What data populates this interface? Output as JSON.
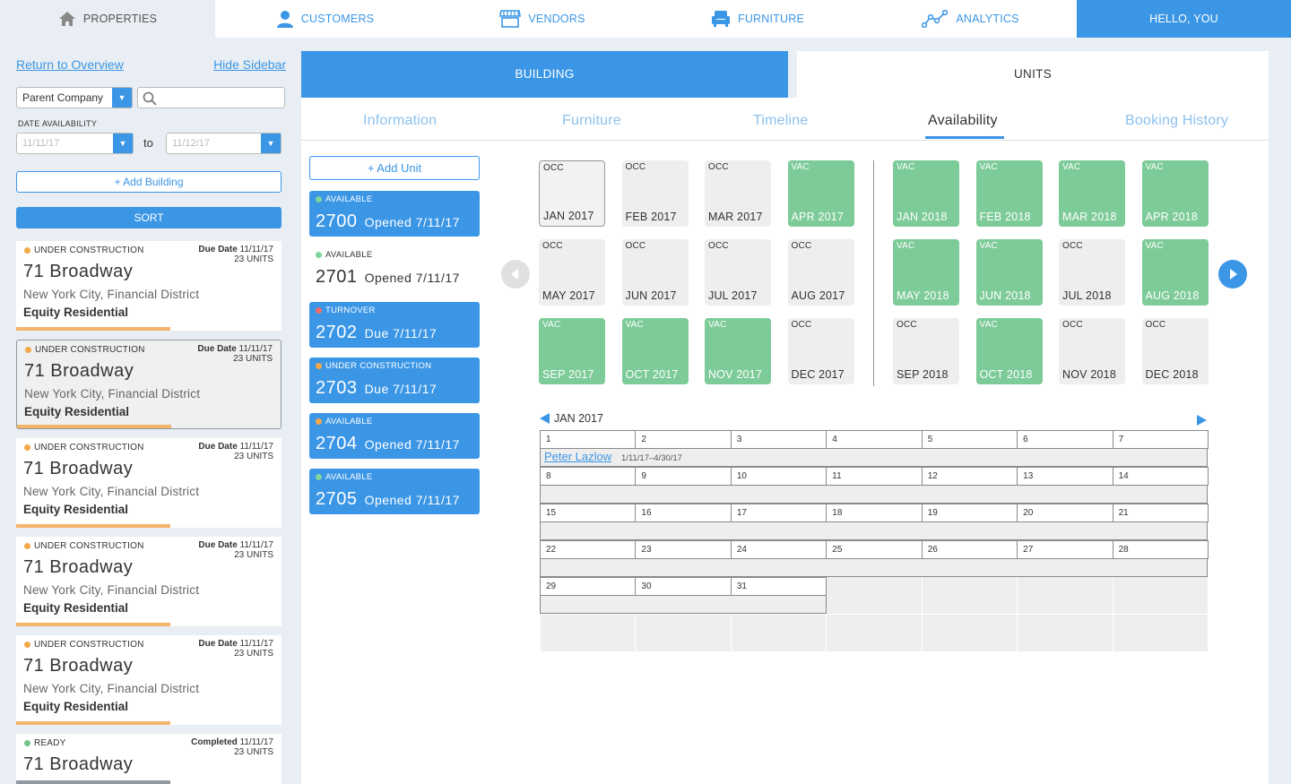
{
  "nav": {
    "properties": "PROPERTIES",
    "customers": "CUSTOMERS",
    "vendors": "VENDORS",
    "furniture": "FURNITURE",
    "analytics": "ANALYTICS",
    "greeting": "HELLO, YOU"
  },
  "sidebar": {
    "return_link": "Return to Overview",
    "hide_link": "Hide Sidebar",
    "company_select": "Parent Company",
    "search_placeholder": "",
    "date_label": "DATE AVAILABILITY",
    "date_from": "11/11/17",
    "date_to": "11/12/17",
    "to_label": "to",
    "add_building": "+ Add Building",
    "sort": "SORT",
    "buildings": [
      {
        "status": "UNDER CONSTRUCTION",
        "status_color": "#f4a949",
        "date_label": "Due Date",
        "date": "11/11/17",
        "units": "23 UNITS",
        "name": "71 Broadway",
        "address": "New York City, Financial District",
        "owner": "Equity Residential",
        "bar_color": "#f4b46a"
      },
      {
        "status": "UNDER CONSTRUCTION",
        "status_color": "#f4a949",
        "date_label": "Due Date",
        "date": "11/11/17",
        "units": "23 UNITS",
        "name": "71 Broadway",
        "address": "New York City, Financial District",
        "owner": "Equity Residential",
        "bar_color": "#f4b46a"
      },
      {
        "status": "UNDER CONSTRUCTION",
        "status_color": "#f4a949",
        "date_label": "Due Date",
        "date": "11/11/17",
        "units": "23 UNITS",
        "name": "71 Broadway",
        "address": "New York City, Financial District",
        "owner": "Equity Residential",
        "bar_color": "#f4b46a"
      },
      {
        "status": "UNDER CONSTRUCTION",
        "status_color": "#f4a949",
        "date_label": "Due Date",
        "date": "11/11/17",
        "units": "23 UNITS",
        "name": "71 Broadway",
        "address": "New York City, Financial District",
        "owner": "Equity Residential",
        "bar_color": "#f4b46a"
      },
      {
        "status": "UNDER CONSTRUCTION",
        "status_color": "#f4a949",
        "date_label": "Due Date",
        "date": "11/11/17",
        "units": "23 UNITS",
        "name": "71 Broadway",
        "address": "New York City, Financial District",
        "owner": "Equity Residential",
        "bar_color": "#f4b46a"
      },
      {
        "status": "READY",
        "status_color": "#6fc48a",
        "date_label": "Completed",
        "date": "11/11/17",
        "units": "23 UNITS",
        "name": "71 Broadway",
        "address": "",
        "owner": "",
        "bar_color": "#8f99a3"
      }
    ]
  },
  "main": {
    "tabs": {
      "building": "BUILDING",
      "units": "UNITS"
    },
    "subtabs": [
      "Information",
      "Furniture",
      "Timeline",
      "Availability",
      "Booking History"
    ],
    "add_unit": "+ Add Unit",
    "units": [
      {
        "status": "AVAILABLE",
        "dot": "#7dd69c",
        "number": "2700",
        "note": "Opened 7/11/17",
        "selected": true
      },
      {
        "status": "AVAILABLE",
        "dot": "#7dd69c",
        "number": "2701",
        "note": "Opened 7/11/17",
        "selected": false
      },
      {
        "status": "TURNOVER",
        "dot": "#f26b6b",
        "number": "2702",
        "note": "Due 7/11/17",
        "selected": true
      },
      {
        "status": "UNDER CONSTRUCTION",
        "dot": "#f4a949",
        "number": "2703",
        "note": "Due 7/11/17",
        "selected": true
      },
      {
        "status": "AVAILABLE",
        "dot": "#f4a949",
        "number": "2704",
        "note": "Opened 7/11/17",
        "selected": true
      },
      {
        "status": "AVAILABLE",
        "dot": "#7dd69c",
        "number": "2705",
        "note": "Opened 7/11/17",
        "selected": true
      }
    ],
    "months_2017": [
      {
        "tag": "OCC",
        "name": "JAN 2017",
        "selected": true
      },
      {
        "tag": "OCC",
        "name": "FEB 2017"
      },
      {
        "tag": "OCC",
        "name": "MAR 2017"
      },
      {
        "tag": "VAC",
        "name": "APR 2017"
      },
      {
        "tag": "OCC",
        "name": "MAY 2017"
      },
      {
        "tag": "OCC",
        "name": "JUN 2017"
      },
      {
        "tag": "OCC",
        "name": "JUL 2017"
      },
      {
        "tag": "OCC",
        "name": "AUG 2017"
      },
      {
        "tag": "VAC",
        "name": "SEP 2017"
      },
      {
        "tag": "VAC",
        "name": "OCT 2017"
      },
      {
        "tag": "VAC",
        "name": "NOV 2017"
      },
      {
        "tag": "OCC",
        "name": "DEC 2017"
      }
    ],
    "months_2018": [
      {
        "tag": "VAC",
        "name": "JAN 2018"
      },
      {
        "tag": "VAC",
        "name": "FEB 2018"
      },
      {
        "tag": "VAC",
        "name": "MAR 2018"
      },
      {
        "tag": "VAC",
        "name": "APR 2018"
      },
      {
        "tag": "VAC",
        "name": "MAY 2018"
      },
      {
        "tag": "VAC",
        "name": "JUN 2018"
      },
      {
        "tag": "OCC",
        "name": "JUL 2018"
      },
      {
        "tag": "VAC",
        "name": "AUG 2018"
      },
      {
        "tag": "OCC",
        "name": "SEP 2018"
      },
      {
        "tag": "VAC",
        "name": "OCT 2018"
      },
      {
        "tag": "OCC",
        "name": "NOV 2018"
      },
      {
        "tag": "OCC",
        "name": "DEC 2018"
      }
    ],
    "calendar": {
      "month": "JAN 2017",
      "weeks": [
        [
          "1",
          "2",
          "3",
          "4",
          "5",
          "6",
          "7"
        ],
        [
          "8",
          "9",
          "10",
          "11",
          "12",
          "13",
          "14"
        ],
        [
          "15",
          "16",
          "17",
          "18",
          "19",
          "20",
          "21"
        ],
        [
          "22",
          "23",
          "24",
          "25",
          "26",
          "27",
          "28"
        ],
        [
          "29",
          "30",
          "31"
        ]
      ],
      "booking": {
        "name": "Peter Lazlow",
        "dates": "1/11/17–4/30/17"
      }
    },
    "colors": {
      "accent": "#3b96e6",
      "vacant": "#7dcb98",
      "occupied": "#eeeeee"
    }
  }
}
